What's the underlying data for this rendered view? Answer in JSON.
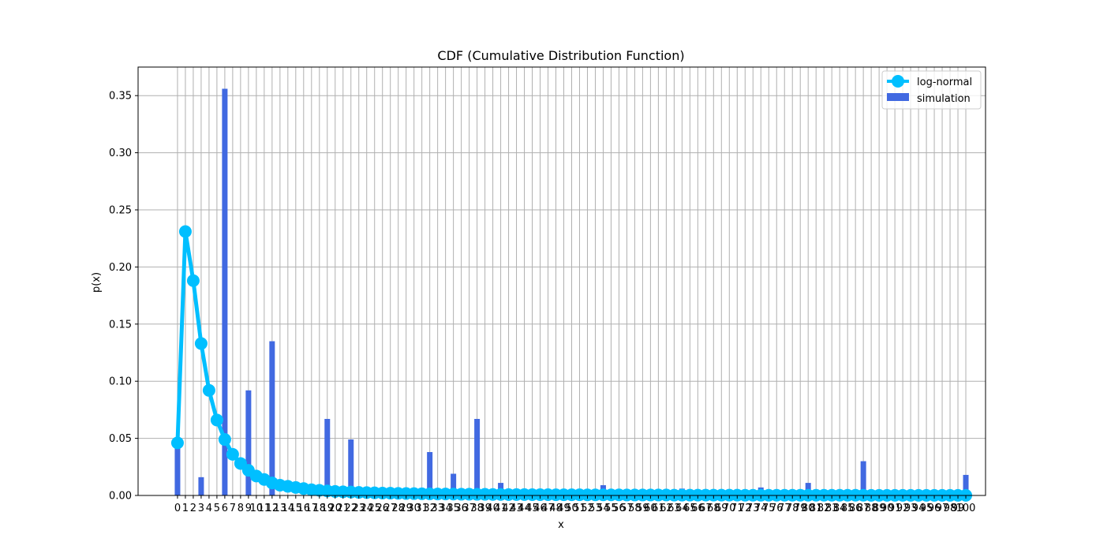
{
  "chart_data": {
    "type": "bar",
    "title": "CDF (Cumulative Distribution Function)",
    "xlabel": "x",
    "ylabel": "p(x)",
    "ylim": [
      0,
      0.375
    ],
    "xlim": [
      -5,
      102.5
    ],
    "yticks": [
      "0.00",
      "0.05",
      "0.10",
      "0.15",
      "0.20",
      "0.25",
      "0.30",
      "0.35"
    ],
    "grid": true,
    "legend_position": "top-right",
    "colors": {
      "bar": "#4169e1",
      "line": "#00bfff",
      "grid": "#b0b0b0"
    },
    "series": [
      {
        "name": "simulation",
        "kind": "bar",
        "points": [
          [
            0,
            0.046
          ],
          [
            3,
            0.016
          ],
          [
            6,
            0.356
          ],
          [
            9,
            0.092
          ],
          [
            12,
            0.135
          ],
          [
            19,
            0.067
          ],
          [
            22,
            0.049
          ],
          [
            32,
            0.038
          ],
          [
            35,
            0.019
          ],
          [
            38,
            0.067
          ],
          [
            41,
            0.011
          ],
          [
            54,
            0.009
          ],
          [
            64,
            0.006
          ],
          [
            74,
            0.007
          ],
          [
            80,
            0.011
          ],
          [
            87,
            0.03
          ],
          [
            100,
            0.018
          ]
        ]
      },
      {
        "name": "log-normal",
        "kind": "line",
        "values": [
          0.046,
          0.231,
          0.188,
          0.133,
          0.092,
          0.066,
          0.049,
          0.036,
          0.028,
          0.022,
          0.017,
          0.014,
          0.011,
          0.009,
          0.008,
          0.007,
          0.006,
          0.005,
          0.0045,
          0.004,
          0.0035,
          0.0032,
          0.003,
          0.0027,
          0.0025,
          0.0023,
          0.0021,
          0.002,
          0.0018,
          0.0017,
          0.0016,
          0.0015,
          0.0014,
          0.0013,
          0.0013,
          0.0012,
          0.0011,
          0.0011,
          0.001,
          0.001,
          0.0009,
          0.0009,
          0.0008,
          0.0008,
          0.0008,
          0.0007,
          0.0007,
          0.0007,
          0.0006,
          0.0006,
          0.0006,
          0.0006,
          0.0005,
          0.0005,
          0.0005,
          0.0005,
          0.0005,
          0.0004,
          0.0004,
          0.0004,
          0.0004,
          0.0004,
          0.0004,
          0.0003,
          0.0003,
          0.0003,
          0.0003,
          0.0003,
          0.0003,
          0.0003,
          0.0003,
          0.0003,
          0.0002,
          0.0002,
          0.0002,
          0.0002,
          0.0002,
          0.0002,
          0.0002,
          0.0002,
          0.0002,
          0.0002,
          0.0002,
          0.0002,
          0.0002,
          0.0002,
          0.0002,
          0.0002,
          0.0001,
          0.0001,
          0.0001,
          0.0001,
          0.0001,
          0.0001,
          0.0001,
          0.0001,
          0.0001,
          0.0001,
          0.0001,
          0.0001,
          0.0001
        ]
      }
    ]
  }
}
